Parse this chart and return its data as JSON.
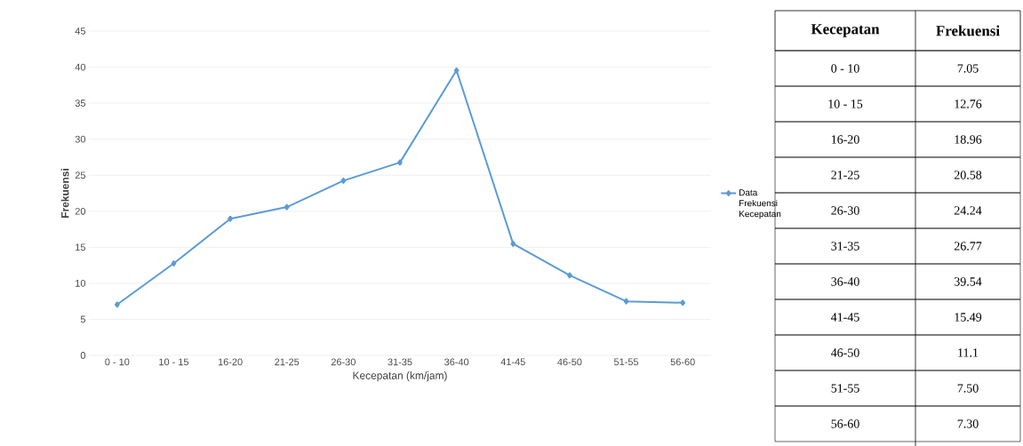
{
  "chart_data": {
    "type": "line",
    "xlabel": "Kecepatan (km/jam)",
    "ylabel": "Frekuensi",
    "categories": [
      "0 - 10",
      "10 - 15",
      "16-20",
      "21-25",
      "26-30",
      "31-35",
      "36-40",
      "41-45",
      "46-50",
      "51-55",
      "56-60"
    ],
    "series": [
      {
        "name": "Data Frekuensi Kecepatan",
        "color": "#5b9bd5",
        "values": [
          7.05,
          12.76,
          18.96,
          20.58,
          24.24,
          26.77,
          39.54,
          15.49,
          11.1,
          7.5,
          7.3
        ]
      }
    ],
    "ylim": [
      0,
      45
    ],
    "yticks": [
      0,
      5,
      10,
      15,
      20,
      25,
      30,
      35,
      40,
      45
    ],
    "grid": "y",
    "legend": "right",
    "marker": "diamond",
    "line_style": "solid",
    "annotations": [
      "Kecepatan",
      "Frekuensi",
      "7.05",
      "12.76",
      "18.96",
      "20.58",
      "24.24",
      "26.77",
      "39.54",
      "15.49",
      "11.1",
      "7.50",
      "7.30"
    ]
  }
}
